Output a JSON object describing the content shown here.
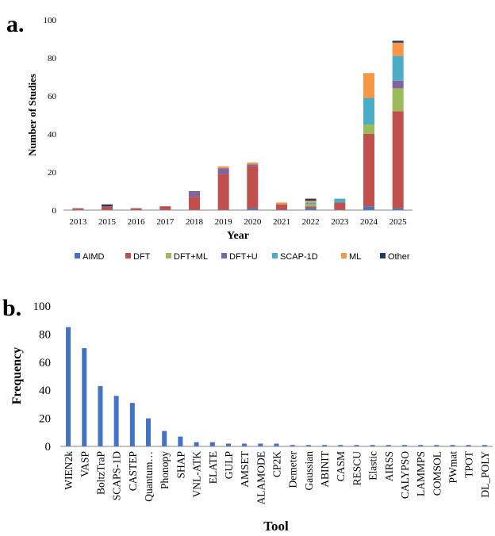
{
  "chart_data": [
    {
      "type": "bar",
      "stacked": true,
      "panel_label": "a.",
      "title": "",
      "xlabel": "Year",
      "ylabel": "Number of Studies",
      "ylim": [
        0,
        100
      ],
      "yticks": [
        0,
        20,
        40,
        60,
        80,
        100
      ],
      "grid": false,
      "legend_position": "bottom",
      "categories": [
        "2013",
        "2015",
        "2016",
        "2017",
        "2018",
        "2019",
        "2020",
        "2021",
        "2022",
        "2023",
        "2024",
        "2025"
      ],
      "series": [
        {
          "name": "AIMD",
          "color": "#4472C4",
          "values": [
            0,
            0,
            0,
            0,
            0,
            0,
            1,
            0,
            1,
            0,
            2,
            1
          ]
        },
        {
          "name": "DFT",
          "color": "#C0504D",
          "values": [
            1,
            2,
            1,
            2,
            7,
            19,
            22,
            3,
            1,
            4,
            38,
            51
          ]
        },
        {
          "name": "DFT+ML",
          "color": "#9BBB59",
          "values": [
            0,
            0,
            0,
            0,
            0,
            0,
            0,
            0,
            1,
            0,
            5,
            12
          ]
        },
        {
          "name": "DFT+U",
          "color": "#8064A2",
          "values": [
            0,
            0,
            0,
            0,
            3,
            3,
            1,
            0,
            0,
            0,
            0,
            4
          ]
        },
        {
          "name": "SCAP-1D",
          "color": "#4BACC6",
          "values": [
            0,
            0,
            0,
            0,
            0,
            0,
            0,
            0,
            1,
            2,
            14,
            13
          ]
        },
        {
          "name": "ML",
          "color": "#F79646",
          "values": [
            0,
            0,
            0,
            0,
            0,
            1,
            1,
            1,
            1,
            0,
            13,
            7
          ]
        },
        {
          "name": "Other",
          "color": "#1F3864",
          "values": [
            0,
            1,
            0,
            0,
            0,
            0,
            0,
            0,
            1,
            0,
            0,
            1
          ]
        }
      ]
    },
    {
      "type": "bar",
      "panel_label": "b.",
      "title": "",
      "xlabel": "Tool",
      "ylabel": "Frequency",
      "ylim": [
        0,
        100
      ],
      "yticks": [
        0,
        20,
        40,
        60,
        80,
        100
      ],
      "grid": false,
      "color": "#4472C4",
      "categories": [
        "WIEN2k",
        "VASP",
        "BoltzTraP",
        "SCAPS-1D",
        "CASTEP",
        "Quantum…",
        "Phonopy",
        "SHAP",
        "VNL-ATK",
        "ELATE",
        "GULP",
        "AMSET",
        "ALAMODE",
        "CP2K",
        "Demeter",
        "Gaussian",
        "ABINIT",
        "CASM",
        "RESCU",
        "Elastic",
        "AIRSS",
        "CALYPSO",
        "LAMMPS",
        "COMSOL",
        "PWmat",
        "TPOT",
        "DL_POLY"
      ],
      "values": [
        85,
        70,
        43,
        36,
        31,
        20,
        11,
        7,
        3,
        3,
        2,
        2,
        2,
        2,
        1,
        1,
        1,
        1,
        1,
        1,
        1,
        1,
        1,
        1,
        1,
        1,
        1
      ]
    }
  ]
}
